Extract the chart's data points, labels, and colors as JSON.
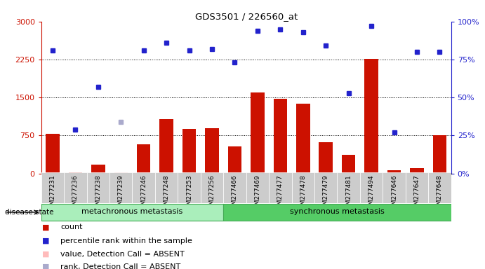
{
  "title": "GDS3501 / 226560_at",
  "samples": [
    "GSM277231",
    "GSM277236",
    "GSM277238",
    "GSM277239",
    "GSM277246",
    "GSM277248",
    "GSM277253",
    "GSM277256",
    "GSM277466",
    "GSM277469",
    "GSM277477",
    "GSM277478",
    "GSM277479",
    "GSM277481",
    "GSM277494",
    "GSM277646",
    "GSM277647",
    "GSM277648"
  ],
  "bar_values": [
    780,
    20,
    175,
    30,
    580,
    1070,
    880,
    900,
    530,
    1600,
    1470,
    1380,
    620,
    365,
    2270,
    60,
    100,
    760
  ],
  "bar_absent": [
    false,
    false,
    false,
    true,
    false,
    false,
    false,
    false,
    false,
    false,
    false,
    false,
    false,
    false,
    false,
    false,
    false,
    false
  ],
  "blue_dot_pct": [
    81,
    29,
    57,
    34,
    81,
    86,
    81,
    82,
    73,
    94,
    95,
    93,
    84,
    53,
    97,
    27,
    80,
    80
  ],
  "blue_dot_absent": [
    false,
    false,
    false,
    true,
    false,
    false,
    false,
    false,
    false,
    false,
    false,
    false,
    false,
    false,
    false,
    false,
    false,
    false
  ],
  "n_meta": 8,
  "n_sync": 10,
  "ylim_left": [
    0,
    3000
  ],
  "ylim_right": [
    0,
    100
  ],
  "yticks_left": [
    0,
    750,
    1500,
    2250,
    3000
  ],
  "yticks_right": [
    0,
    25,
    50,
    75,
    100
  ],
  "bar_color": "#cc1100",
  "bar_absent_color": "#ffbbbb",
  "dot_color": "#2222cc",
  "dot_absent_color": "#aaaacc",
  "xticklabel_bg": "#cccccc",
  "meta_group_color": "#aaeebb",
  "sync_group_color": "#55cc66",
  "group_label_meta": "metachronous metastasis",
  "group_label_sync": "synchronous metastasis",
  "disease_state_label": "disease state",
  "legend_items": [
    "count",
    "percentile rank within the sample",
    "value, Detection Call = ABSENT",
    "rank, Detection Call = ABSENT"
  ],
  "legend_colors": [
    "#cc1100",
    "#2222cc",
    "#ffbbbb",
    "#aaaacc"
  ]
}
